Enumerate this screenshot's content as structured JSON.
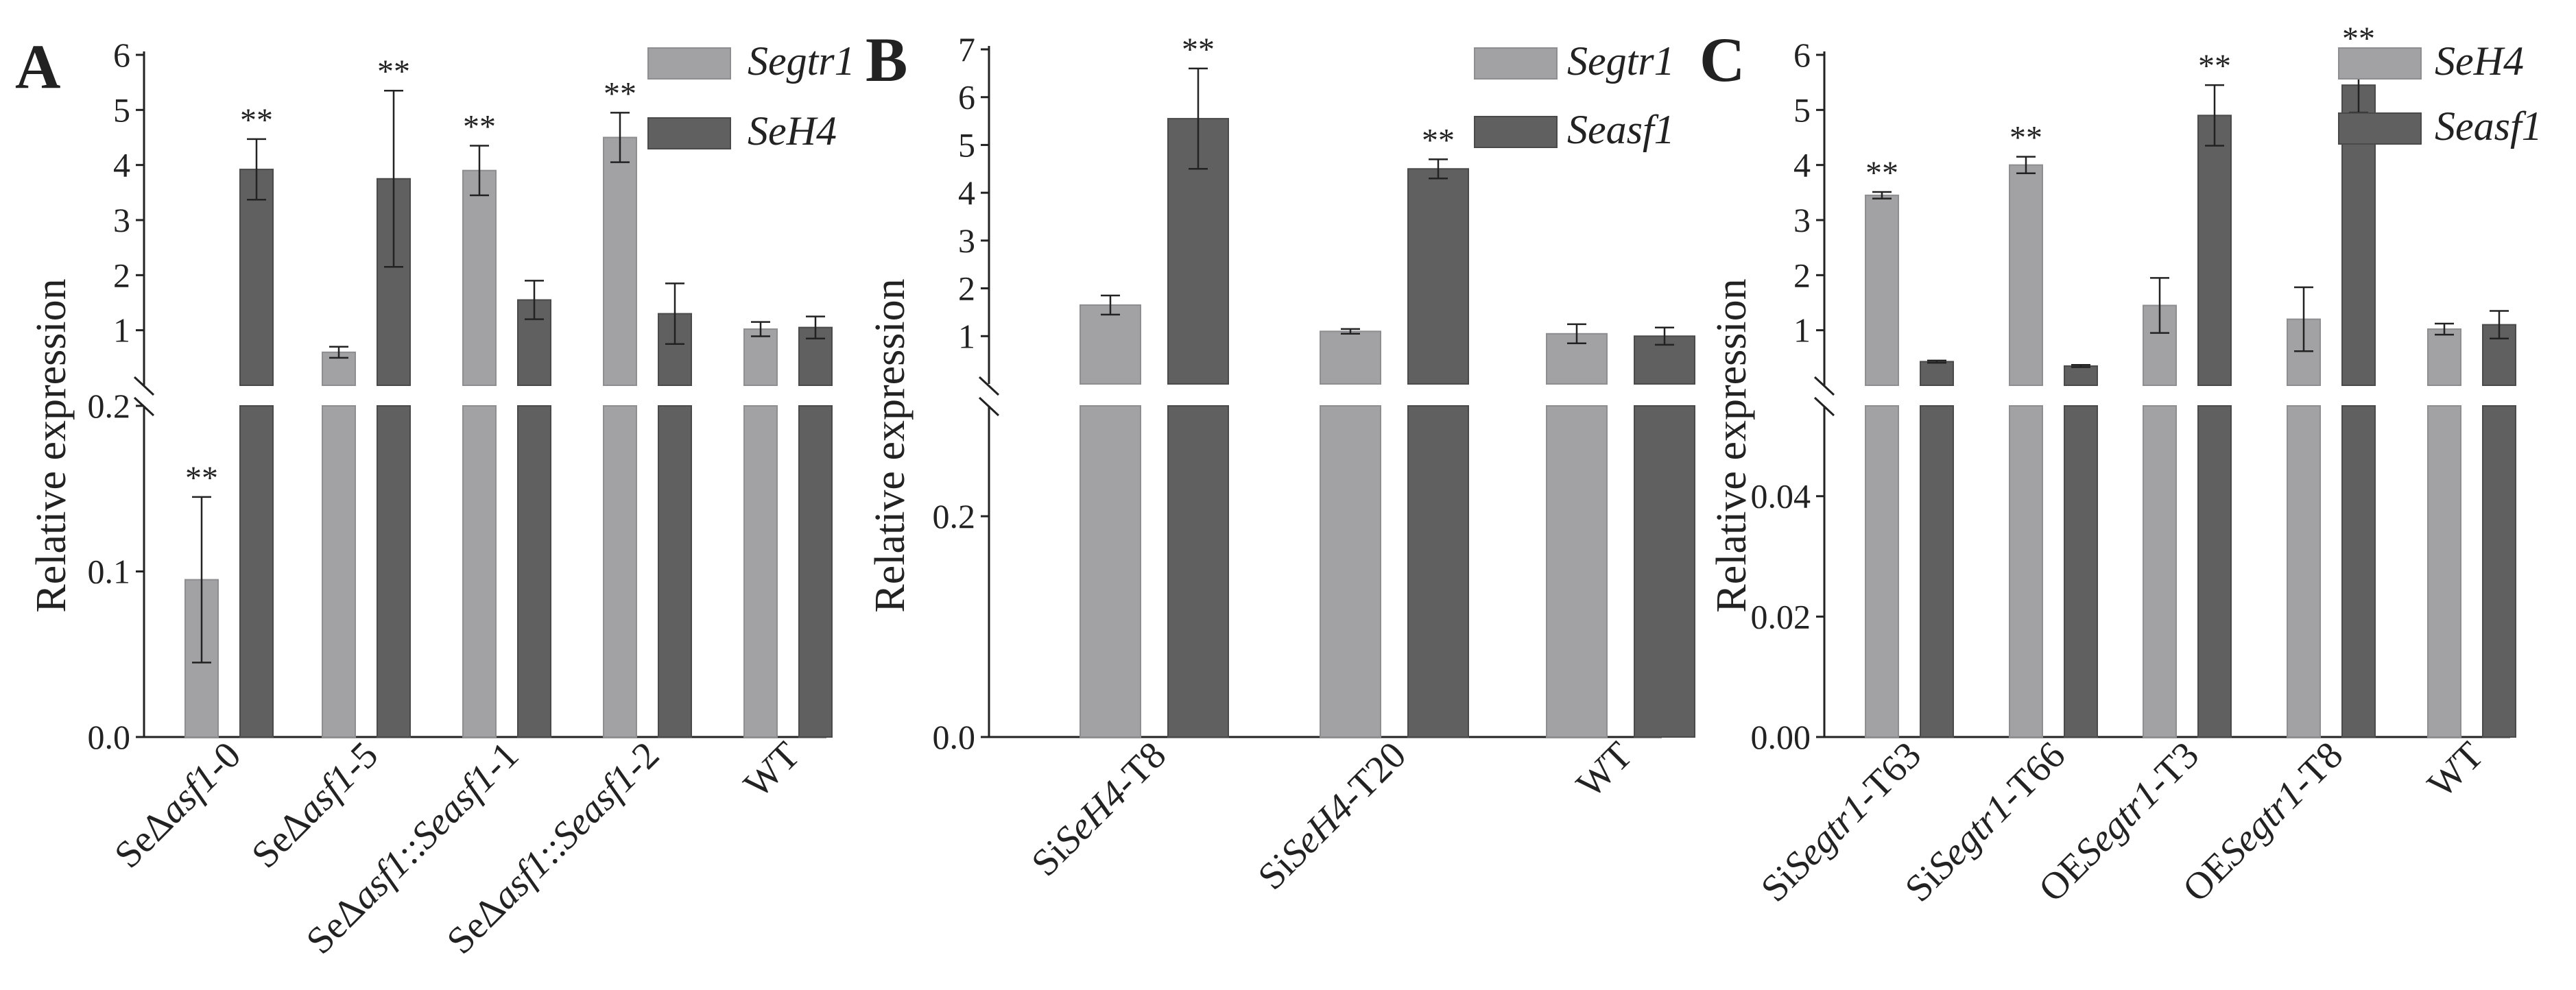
{
  "chart_data": [
    {
      "panel": "A",
      "type": "bar",
      "ylabel": "Relative expression",
      "broken_axis": true,
      "lower_ylim": [
        0,
        0.2
      ],
      "upper_ylim": [
        0,
        6
      ],
      "lower_ticks": [
        "0.0",
        "0.1",
        "0.2"
      ],
      "upper_ticks": [
        "1",
        "2",
        "3",
        "4",
        "5",
        "6"
      ],
      "categories": [
        {
          "label": [
            {
              "t": "SeΔ"
            },
            {
              "t": "asf1",
              "i": true
            },
            {
              "t": "-0"
            }
          ]
        },
        {
          "label": [
            {
              "t": "SeΔ"
            },
            {
              "t": "asf1",
              "i": true
            },
            {
              "t": "-5"
            }
          ]
        },
        {
          "label": [
            {
              "t": "SeΔ"
            },
            {
              "t": "asf1",
              "i": true
            },
            {
              "t": "::"
            },
            {
              "t": "Seasf1",
              "i": true
            },
            {
              "t": "-1"
            }
          ]
        },
        {
          "label": [
            {
              "t": "SeΔ"
            },
            {
              "t": "asf1",
              "i": true
            },
            {
              "t": "::"
            },
            {
              "t": "Seasf1",
              "i": true
            },
            {
              "t": "-2"
            }
          ]
        },
        {
          "label": [
            {
              "t": "WT"
            }
          ]
        }
      ],
      "series": [
        {
          "name": "Segtr1",
          "color": "#a2a1a4",
          "values": [
            0.095,
            0.6,
            3.9,
            4.5,
            1.02
          ],
          "errors": [
            0.05,
            0.1,
            0.45,
            0.45,
            0.13
          ],
          "stars": [
            "**",
            "",
            "**",
            "**",
            ""
          ]
        },
        {
          "name": "SeH4",
          "color": "#606061",
          "values": [
            3.92,
            3.75,
            1.55,
            1.3,
            1.05
          ],
          "errors": [
            0.55,
            1.6,
            0.35,
            0.55,
            0.2
          ],
          "stars": [
            "**",
            "**",
            "",
            "",
            ""
          ]
        }
      ]
    },
    {
      "panel": "B",
      "type": "bar",
      "ylabel": "Relative expression",
      "broken_axis": true,
      "lower_ylim": [
        0,
        0.3
      ],
      "upper_ylim": [
        0,
        7
      ],
      "lower_ticks": [
        "0.0",
        "0.2"
      ],
      "upper_ticks": [
        "1",
        "2",
        "3",
        "4",
        "5",
        "6",
        "7"
      ],
      "categories": [
        {
          "label": [
            {
              "t": "Si"
            },
            {
              "t": "SeH4",
              "i": true
            },
            {
              "t": "-T8"
            }
          ]
        },
        {
          "label": [
            {
              "t": "Si"
            },
            {
              "t": "SeH4",
              "i": true
            },
            {
              "t": "-T20"
            }
          ]
        },
        {
          "label": [
            {
              "t": "WT"
            }
          ]
        }
      ],
      "series": [
        {
          "name": "Segtr1",
          "color": "#a2a1a4",
          "values": [
            1.65,
            1.1,
            1.05
          ],
          "errors": [
            0.2,
            0.05,
            0.2
          ],
          "stars": [
            "",
            "",
            ""
          ]
        },
        {
          "name": "Seasf1",
          "color": "#606061",
          "values": [
            5.55,
            4.5,
            1.0
          ],
          "errors": [
            1.05,
            0.2,
            0.18
          ],
          "stars": [
            "**",
            "**",
            ""
          ]
        }
      ]
    },
    {
      "panel": "C",
      "type": "bar",
      "ylabel": "Relative expression",
      "broken_axis": true,
      "lower_ylim": [
        0,
        0.055
      ],
      "upper_ylim": [
        0,
        6
      ],
      "lower_ticks": [
        "0.00",
        "0.02",
        "0.04"
      ],
      "upper_ticks": [
        "1",
        "2",
        "3",
        "4",
        "5",
        "6"
      ],
      "categories": [
        {
          "label": [
            {
              "t": "Si"
            },
            {
              "t": "Segtr1",
              "i": true
            },
            {
              "t": "-T63"
            }
          ]
        },
        {
          "label": [
            {
              "t": "Si"
            },
            {
              "t": "Segtr1",
              "i": true
            },
            {
              "t": "-T66"
            }
          ]
        },
        {
          "label": [
            {
              "t": "OE"
            },
            {
              "t": "Segtr1",
              "i": true
            },
            {
              "t": "-T3"
            }
          ]
        },
        {
          "label": [
            {
              "t": "OE"
            },
            {
              "t": "Segtr1",
              "i": true
            },
            {
              "t": "-T8"
            }
          ]
        },
        {
          "label": [
            {
              "t": "WT"
            }
          ]
        }
      ],
      "series": [
        {
          "name": "SeH4",
          "color": "#a2a1a4",
          "values": [
            3.45,
            4.0,
            1.45,
            1.2,
            1.02
          ],
          "errors": [
            0.06,
            0.15,
            0.5,
            0.58,
            0.1
          ],
          "stars": [
            "**",
            "**",
            "",
            "",
            ""
          ]
        },
        {
          "name": "Seasf1",
          "color": "#606061",
          "values": [
            0.43,
            0.35,
            4.9,
            5.45,
            1.1
          ],
          "errors": [
            0.02,
            0.02,
            0.55,
            0.5,
            0.25
          ],
          "stars": [
            "",
            "",
            "**",
            "**",
            ""
          ]
        }
      ]
    }
  ]
}
